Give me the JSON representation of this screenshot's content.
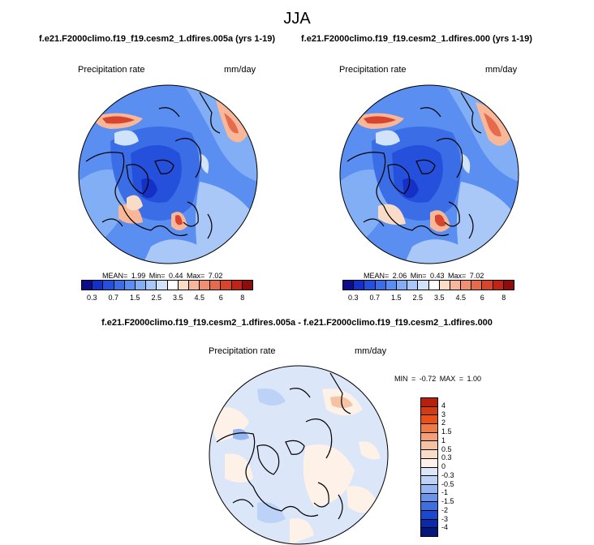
{
  "season": "JJA",
  "panels": [
    {
      "case_title": "f.e21.F2000climo.f19_f19.cesm2_1.dfires.005a (yrs 1-19)",
      "variable": "Precipitation rate",
      "units": "mm/day",
      "stats": "MEAN=  1.99  Min=  0.44  Max=  7.02"
    },
    {
      "case_title": "f.e21.F2000climo.f19_f19.cesm2_1.dfires.000 (yrs 1-19)",
      "variable": "Precipitation rate",
      "units": "mm/day",
      "stats": "MEAN=  2.06  Min=  0.43  Max=  7.02"
    }
  ],
  "diff": {
    "title": "f.e21.F2000climo.f19_f19.cesm2_1.dfires.005a - f.e21.F2000climo.f19_f19.cesm2_1.dfires.000",
    "variable": "Precipitation rate",
    "units": "mm/day",
    "stats": "MIN =  -0.72 MAX =   1.00"
  },
  "colorbar_abs": {
    "ticks": [
      "0.3",
      "0.7",
      "1.5",
      "2.5",
      "3.5",
      "4.5",
      "6",
      "8"
    ],
    "colors": [
      "#0c0c8c",
      "#1530c4",
      "#2450dc",
      "#3b6ee6",
      "#5a8ef0",
      "#82aef5",
      "#a9c8f8",
      "#d1e2fb",
      "#ffffff",
      "#fbdcc6",
      "#f7b798",
      "#f09072",
      "#e66a4c",
      "#d8452e",
      "#bf2419",
      "#8f0c0c"
    ]
  },
  "colorbar_diff": {
    "ticks": [
      "4",
      "3",
      "2",
      "1.5",
      "1",
      "0.5",
      "0.3",
      "0",
      "-0.3",
      "-0.5",
      "-1",
      "-1.5",
      "-2",
      "-3",
      "-4"
    ],
    "colors": [
      "#b8200c",
      "#d43a14",
      "#e8521a",
      "#f07a44",
      "#f3a078",
      "#f6c2a4",
      "#f9dcc8",
      "#fdf1e8",
      "#dbe6f9",
      "#bcd2f6",
      "#95b6f0",
      "#6a94e8",
      "#3f6ee0",
      "#1c48cc",
      "#0c2aa8",
      "#061680"
    ]
  }
}
